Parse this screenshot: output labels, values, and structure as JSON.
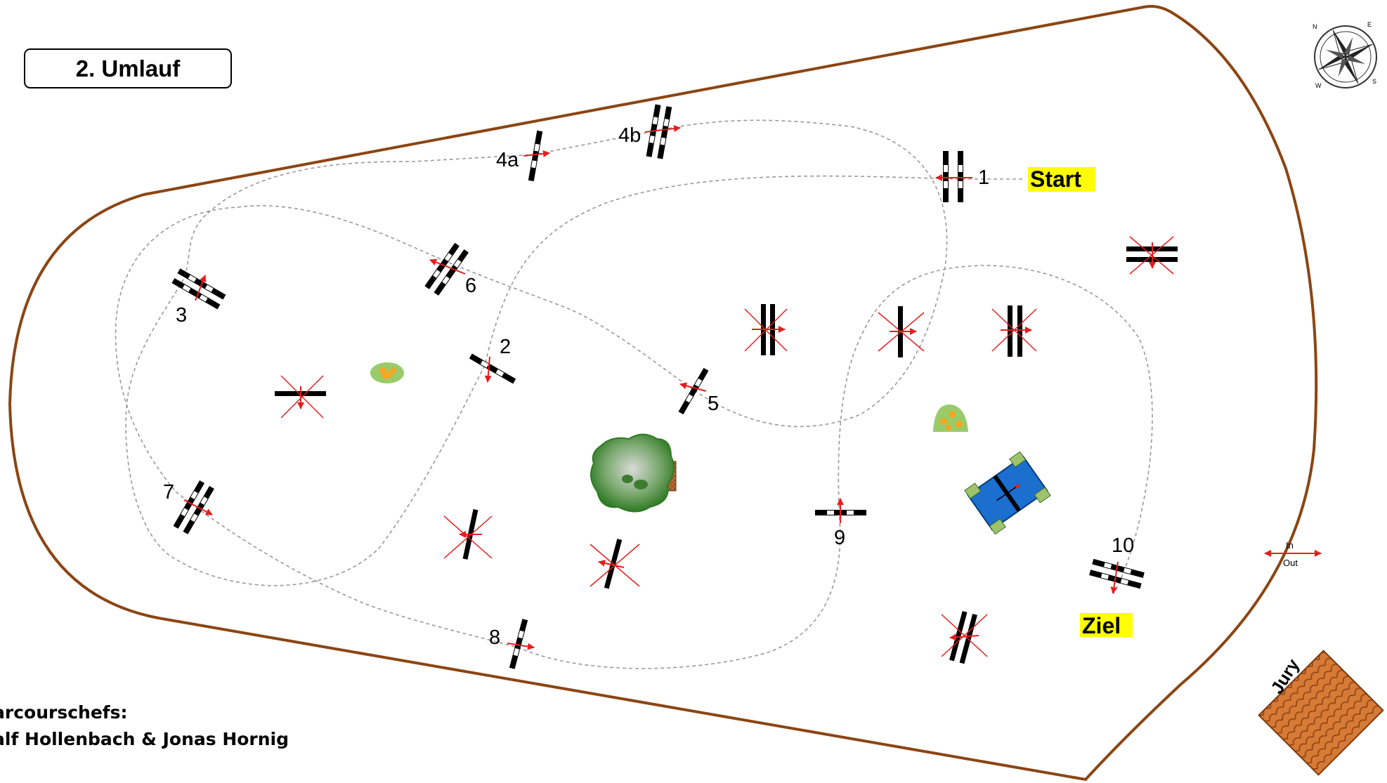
{
  "title": "2. Umlauf",
  "labels": {
    "start": "Start",
    "finish": "Ziel",
    "in": "In",
    "out": "Out",
    "jury": "Jury"
  },
  "credits": {
    "line1": "arcourschefs:",
    "line2": "alf Hollenbach & Jonas Hornig"
  },
  "obstacles": [
    {
      "number": "1",
      "type": "oxer"
    },
    {
      "number": "2",
      "type": "vertical"
    },
    {
      "number": "3",
      "type": "oxer"
    },
    {
      "number": "4a",
      "type": "vertical"
    },
    {
      "number": "4b",
      "type": "oxer"
    },
    {
      "number": "5",
      "type": "vertical"
    },
    {
      "number": "6",
      "type": "oxer"
    },
    {
      "number": "7",
      "type": "oxer"
    },
    {
      "number": "8",
      "type": "vertical"
    },
    {
      "number": "9",
      "type": "vertical"
    },
    {
      "number": "10",
      "type": "oxer"
    }
  ],
  "colors": {
    "arena_border": "#8b4513",
    "route": "#999999",
    "direction_arrow": "#e41f1f",
    "highlight": "#ffff00",
    "water": "#1a6fcf",
    "tree": "#4f8f3c",
    "jury_roof": "#c8682a"
  },
  "compass": {
    "n": "N",
    "e": "E",
    "s": "S",
    "w": "W"
  }
}
